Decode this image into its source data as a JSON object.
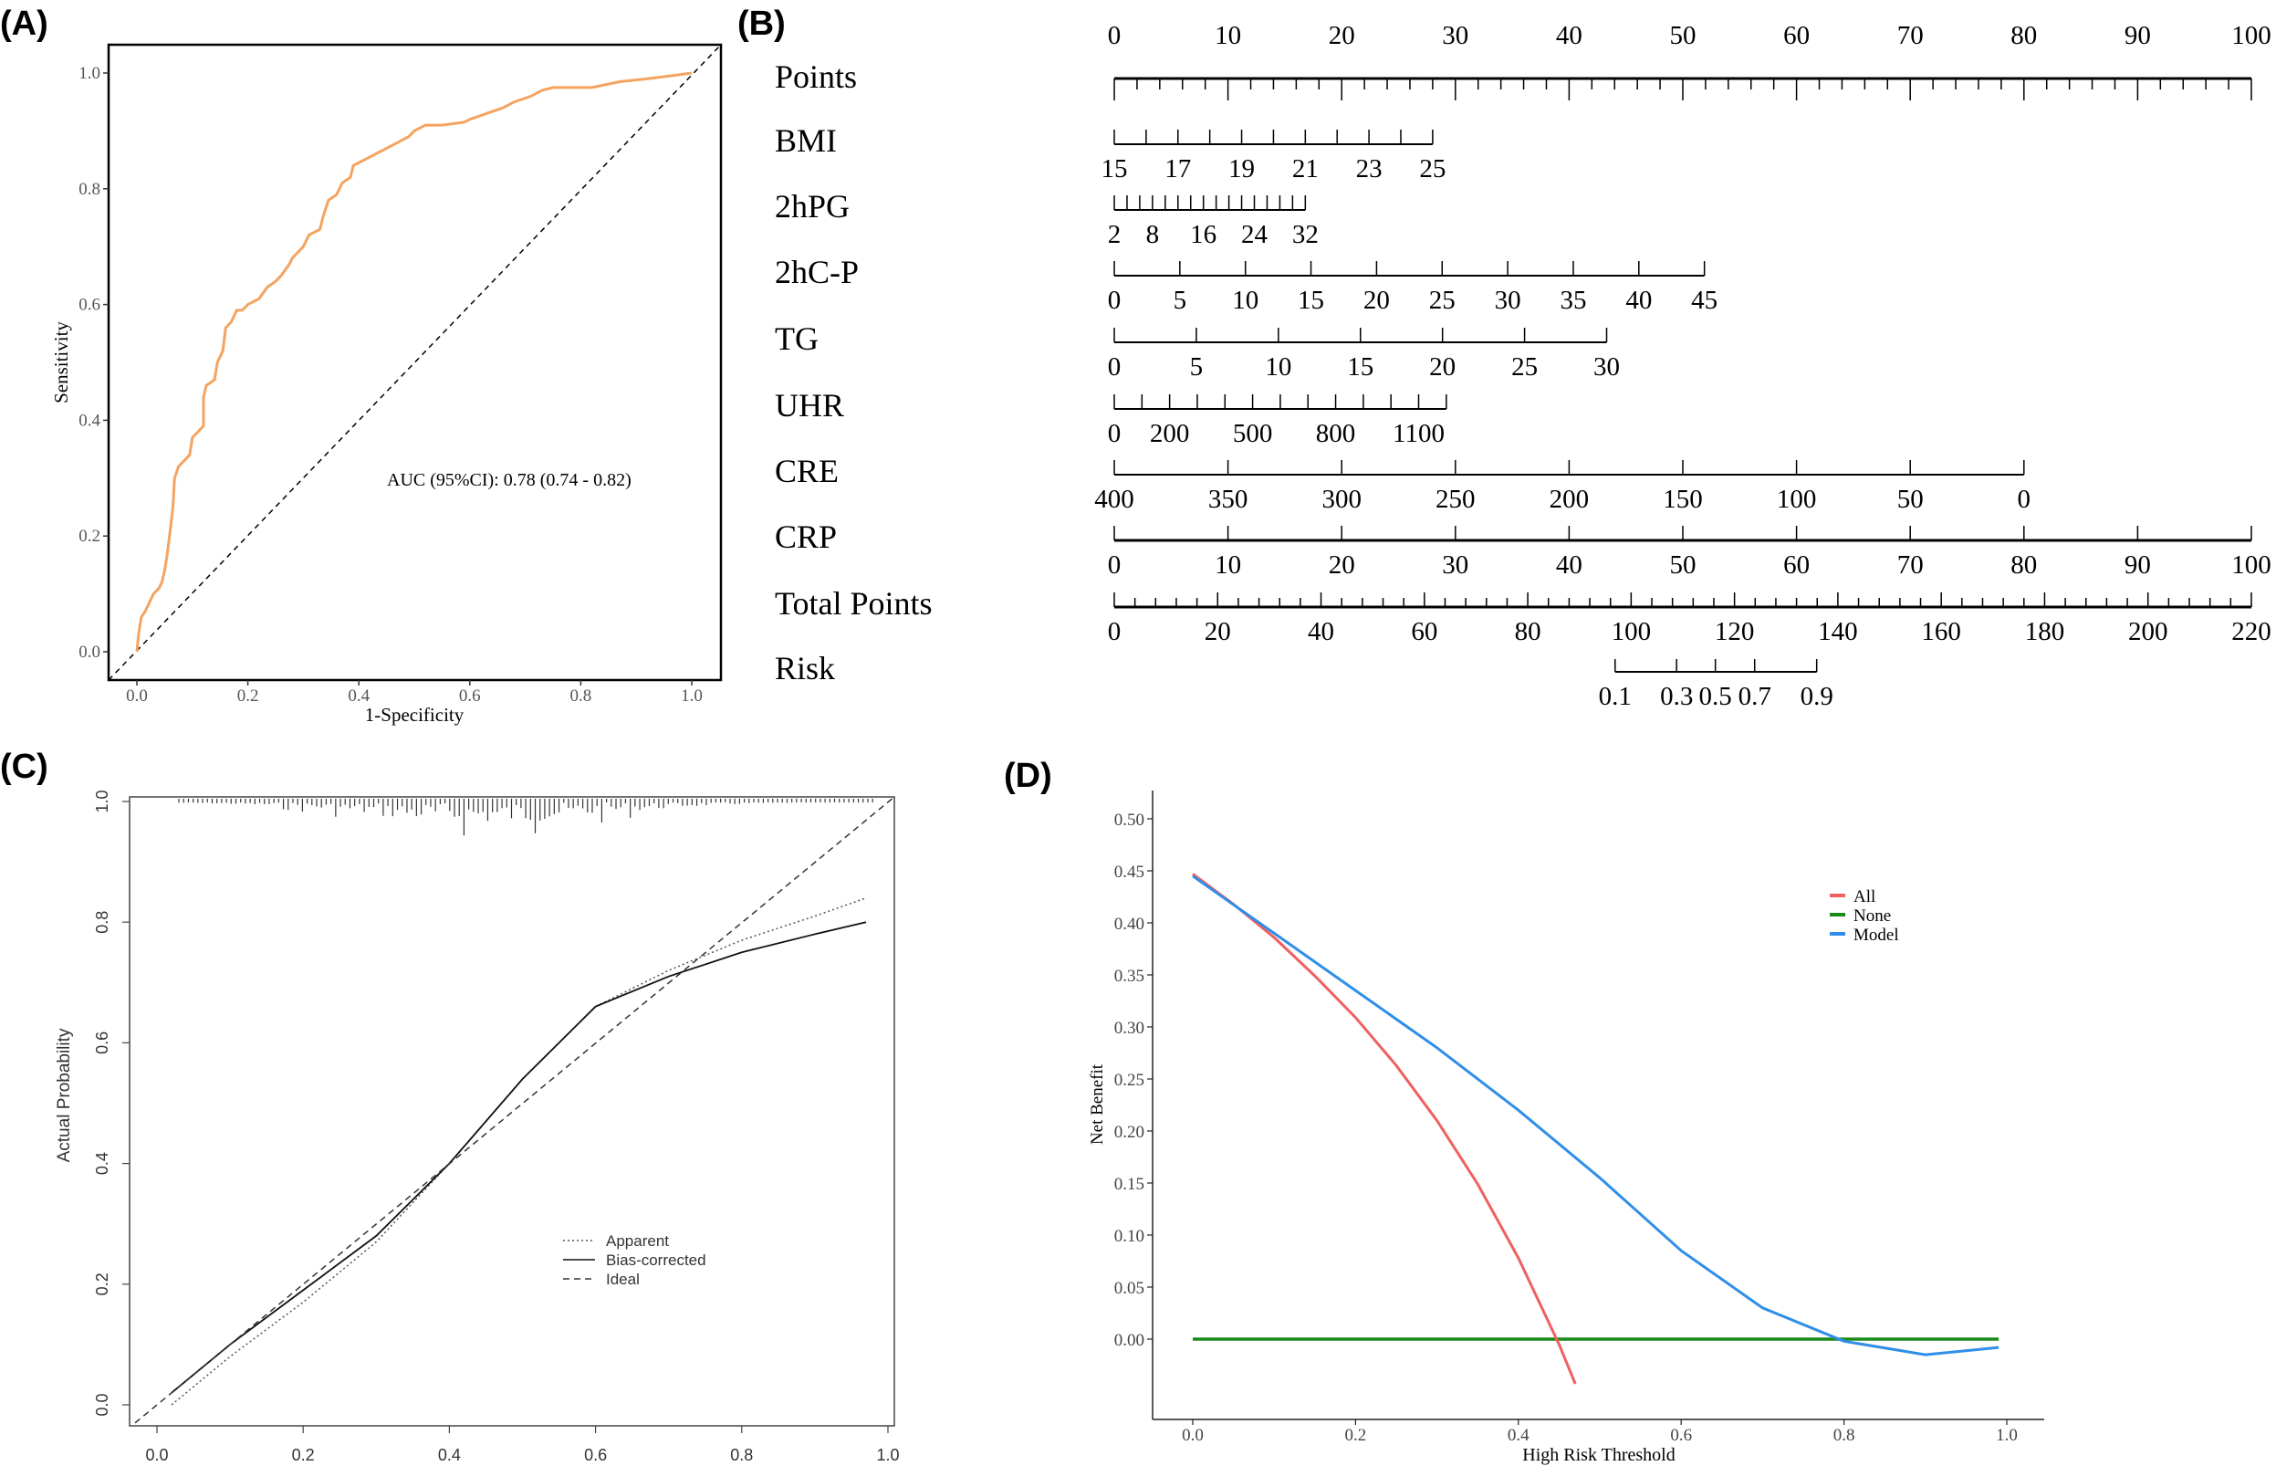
{
  "panels": {
    "a": "(A)",
    "b": "(B)",
    "c": "(C)",
    "d": "(D)"
  },
  "chart_data": [
    {
      "id": "roc",
      "type": "line",
      "xlabel": "1-Specificity",
      "ylabel": "Sensitivity",
      "xlim": [
        0,
        1
      ],
      "ylim": [
        0,
        1
      ],
      "ticks": [
        "0.0",
        "0.2",
        "0.4",
        "0.6",
        "0.8",
        "1.0"
      ],
      "annotation": "AUC (95%CI): 0.78 (0.74 - 0.82)",
      "line_color": "#f4a460",
      "series": [
        {
          "name": "ROC",
          "points": [
            [
              0,
              0
            ],
            [
              0.003,
              0.03
            ],
            [
              0.008,
              0.06
            ],
            [
              0.015,
              0.07
            ],
            [
              0.02,
              0.08
            ],
            [
              0.03,
              0.1
            ],
            [
              0.04,
              0.11
            ],
            [
              0.045,
              0.12
            ],
            [
              0.05,
              0.14
            ],
            [
              0.055,
              0.17
            ],
            [
              0.06,
              0.21
            ],
            [
              0.065,
              0.25
            ],
            [
              0.068,
              0.3
            ],
            [
              0.075,
              0.32
            ],
            [
              0.085,
              0.33
            ],
            [
              0.095,
              0.34
            ],
            [
              0.1,
              0.37
            ],
            [
              0.11,
              0.38
            ],
            [
              0.12,
              0.39
            ],
            [
              0.12,
              0.44
            ],
            [
              0.125,
              0.46
            ],
            [
              0.14,
              0.47
            ],
            [
              0.145,
              0.5
            ],
            [
              0.155,
              0.52
            ],
            [
              0.16,
              0.56
            ],
            [
              0.17,
              0.57
            ],
            [
              0.18,
              0.59
            ],
            [
              0.19,
              0.59
            ],
            [
              0.2,
              0.6
            ],
            [
              0.22,
              0.61
            ],
            [
              0.235,
              0.63
            ],
            [
              0.25,
              0.64
            ],
            [
              0.26,
              0.65
            ],
            [
              0.275,
              0.67
            ],
            [
              0.28,
              0.68
            ],
            [
              0.29,
              0.69
            ],
            [
              0.3,
              0.7
            ],
            [
              0.31,
              0.72
            ],
            [
              0.33,
              0.73
            ],
            [
              0.335,
              0.75
            ],
            [
              0.345,
              0.78
            ],
            [
              0.36,
              0.79
            ],
            [
              0.37,
              0.81
            ],
            [
              0.385,
              0.82
            ],
            [
              0.39,
              0.84
            ],
            [
              0.41,
              0.85
            ],
            [
              0.43,
              0.86
            ],
            [
              0.45,
              0.87
            ],
            [
              0.47,
              0.88
            ],
            [
              0.49,
              0.89
            ],
            [
              0.5,
              0.9
            ],
            [
              0.52,
              0.91
            ],
            [
              0.55,
              0.91
            ],
            [
              0.59,
              0.915
            ],
            [
              0.6,
              0.92
            ],
            [
              0.63,
              0.93
            ],
            [
              0.66,
              0.94
            ],
            [
              0.68,
              0.95
            ],
            [
              0.71,
              0.96
            ],
            [
              0.73,
              0.97
            ],
            [
              0.75,
              0.975
            ],
            [
              0.82,
              0.975
            ],
            [
              0.87,
              0.985
            ],
            [
              0.92,
              0.99
            ],
            [
              0.96,
              0.995
            ],
            [
              1,
              1
            ]
          ]
        },
        {
          "name": "Reference",
          "points": [
            [
              0,
              0
            ],
            [
              1,
              1
            ]
          ]
        }
      ]
    },
    {
      "id": "nomogram",
      "type": "nomogram",
      "axes": [
        {
          "name": "Points",
          "values": [
            0,
            100
          ],
          "points": [
            0,
            100
          ],
          "minor": 2,
          "labels": [
            "0",
            "10",
            "20",
            "30",
            "40",
            "50",
            "60",
            "70",
            "80",
            "90",
            "100"
          ],
          "label_values": [
            0,
            10,
            20,
            30,
            40,
            50,
            60,
            70,
            80,
            90,
            100
          ],
          "labels_above": true
        },
        {
          "name": "BMI",
          "values": [
            15,
            25
          ],
          "points": [
            0,
            28
          ],
          "minor": 1,
          "labels": [
            "15",
            "17",
            "19",
            "21",
            "23",
            "25"
          ],
          "label_values": [
            15,
            17,
            19,
            21,
            23,
            25
          ]
        },
        {
          "name": "2hPG",
          "values": [
            2,
            32
          ],
          "points": [
            0,
            16.8
          ],
          "minor": 2,
          "labels": [
            "2",
            "8",
            "16",
            "24",
            "32"
          ],
          "label_values": [
            2,
            8,
            16,
            24,
            32
          ]
        },
        {
          "name": "2hC-P",
          "values": [
            0,
            45
          ],
          "points": [
            0,
            51.9
          ],
          "minor": 5,
          "labels": [
            "0",
            "5",
            "10",
            "15",
            "20",
            "25",
            "30",
            "35",
            "40",
            "45"
          ],
          "label_values": [
            0,
            5,
            10,
            15,
            20,
            25,
            30,
            35,
            40,
            45
          ]
        },
        {
          "name": "TG",
          "values": [
            0,
            30
          ],
          "points": [
            0,
            43.3
          ],
          "minor": 5,
          "labels": [
            "0",
            "5",
            "10",
            "15",
            "20",
            "25",
            "30"
          ],
          "label_values": [
            0,
            5,
            10,
            15,
            20,
            25,
            30
          ]
        },
        {
          "name": "UHR",
          "values": [
            0,
            1200
          ],
          "points": [
            0,
            29.2
          ],
          "minor": 100,
          "labels": [
            "0",
            "200",
            "500",
            "800",
            "1100"
          ],
          "label_values": [
            0,
            200,
            500,
            800,
            1100
          ]
        },
        {
          "name": "CRE",
          "values": [
            400,
            0
          ],
          "points": [
            0,
            80
          ],
          "minor": 50,
          "labels": [
            "400",
            "350",
            "300",
            "250",
            "200",
            "150",
            "100",
            "50",
            "0"
          ],
          "label_values": [
            400,
            350,
            300,
            250,
            200,
            150,
            100,
            50,
            0
          ]
        },
        {
          "name": "CRP",
          "values": [
            0,
            100
          ],
          "points": [
            0,
            100
          ],
          "minor": 10,
          "labels": [
            "0",
            "10",
            "20",
            "30",
            "40",
            "50",
            "60",
            "70",
            "80",
            "90",
            "100"
          ],
          "label_values": [
            0,
            10,
            20,
            30,
            40,
            50,
            60,
            70,
            80,
            90,
            100
          ]
        },
        {
          "name": "Total Points",
          "values": [
            0,
            220
          ],
          "points": [
            0,
            100
          ],
          "minor": 4,
          "labels": [
            "0",
            "20",
            "40",
            "60",
            "80",
            "100",
            "120",
            "140",
            "160",
            "180",
            "200",
            "220"
          ],
          "label_values": [
            0,
            20,
            40,
            60,
            80,
            100,
            120,
            140,
            160,
            180,
            200,
            220
          ]
        },
        {
          "name": "Risk",
          "total_points": true,
          "ticks": [
            [
              0.1,
              96.9
            ],
            [
              0.3,
              108.8
            ],
            [
              0.5,
              116.3
            ],
            [
              0.7,
              123.9
            ],
            [
              0.9,
              135.9
            ]
          ],
          "labels": [
            "0.1",
            "0.3",
            "0.5",
            "0.7",
            "0.9"
          ]
        }
      ]
    },
    {
      "id": "calibration",
      "type": "line",
      "xlabel": "",
      "ylabel": "Actual Probability",
      "xlim": [
        0,
        1
      ],
      "ylim": [
        0,
        1
      ],
      "ticks": [
        "0.0",
        "0.2",
        "0.4",
        "0.6",
        "0.8",
        "1.0"
      ],
      "legend": [
        "Apparent",
        "Bias-corrected",
        "Ideal"
      ],
      "legend_position": "center-right",
      "series": [
        {
          "name": "Apparent",
          "style": "dotted",
          "points": [
            [
              0.02,
              0.0
            ],
            [
              0.1,
              0.08
            ],
            [
              0.2,
              0.17
            ],
            [
              0.3,
              0.27
            ],
            [
              0.4,
              0.4
            ],
            [
              0.5,
              0.54
            ],
            [
              0.6,
              0.66
            ],
            [
              0.7,
              0.72
            ],
            [
              0.8,
              0.77
            ],
            [
              0.9,
              0.81
            ],
            [
              0.97,
              0.84
            ]
          ]
        },
        {
          "name": "Bias-corrected",
          "style": "solid",
          "points": [
            [
              0.02,
              0.02
            ],
            [
              0.1,
              0.1
            ],
            [
              0.2,
              0.19
            ],
            [
              0.3,
              0.28
            ],
            [
              0.4,
              0.4
            ],
            [
              0.5,
              0.54
            ],
            [
              0.6,
              0.66
            ],
            [
              0.7,
              0.71
            ],
            [
              0.8,
              0.75
            ],
            [
              0.9,
              0.78
            ],
            [
              0.97,
              0.8
            ]
          ]
        },
        {
          "name": "Ideal",
          "style": "dashed",
          "points": [
            [
              -0.03,
              -0.03
            ],
            [
              1.02,
              1.02
            ]
          ]
        }
      ]
    },
    {
      "id": "dca",
      "type": "line",
      "xlabel": "High Risk Threshold",
      "ylabel": "Net Benefit",
      "xlim": [
        0,
        1
      ],
      "ylim": [
        -0.05,
        0.5
      ],
      "xticks": [
        "0.0",
        "0.2",
        "0.4",
        "0.6",
        "0.8",
        "1.0"
      ],
      "yticks": [
        "0.00",
        "0.05",
        "0.10",
        "0.15",
        "0.20",
        "0.25",
        "0.30",
        "0.35",
        "0.40",
        "0.45",
        "0.50"
      ],
      "legend_position": "top-right",
      "series": [
        {
          "name": "All",
          "color": "#f06060",
          "points": [
            [
              0,
              0.447
            ],
            [
              0.05,
              0.418
            ],
            [
              0.1,
              0.386
            ],
            [
              0.15,
              0.349
            ],
            [
              0.2,
              0.309
            ],
            [
              0.25,
              0.263
            ],
            [
              0.3,
              0.21
            ],
            [
              0.35,
              0.149
            ],
            [
              0.4,
              0.078
            ],
            [
              0.45,
              -0.005
            ],
            [
              0.47,
              -0.043
            ]
          ]
        },
        {
          "name": "None",
          "color": "#1a8a1a",
          "points": [
            [
              0,
              0
            ],
            [
              0.99,
              0
            ]
          ]
        },
        {
          "name": "Model",
          "color": "#2f8ee8",
          "points": [
            [
              0,
              0.445
            ],
            [
              0.1,
              0.39
            ],
            [
              0.2,
              0.335
            ],
            [
              0.3,
              0.28
            ],
            [
              0.4,
              0.22
            ],
            [
              0.5,
              0.155
            ],
            [
              0.6,
              0.085
            ],
            [
              0.7,
              0.03
            ],
            [
              0.8,
              -0.002
            ],
            [
              0.9,
              -0.015
            ],
            [
              0.99,
              -0.008
            ]
          ]
        }
      ]
    }
  ]
}
